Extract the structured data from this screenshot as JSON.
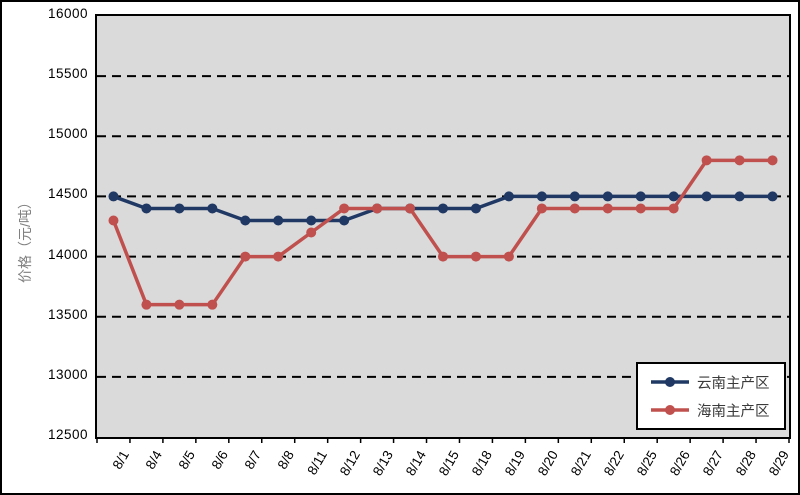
{
  "chart_data": {
    "type": "line",
    "title": "",
    "xlabel": "",
    "ylabel": "价格（元/吨）",
    "ylim": [
      12500,
      16000
    ],
    "ytick_step": 500,
    "yticks": [
      12500,
      13000,
      13500,
      14000,
      14500,
      15000,
      15500,
      16000
    ],
    "grid": "horizontal-dashed",
    "plot_background": "#DADADA",
    "legend_position": "bottom-right-inside",
    "categories": [
      "8/1",
      "8/4",
      "8/5",
      "8/6",
      "8/7",
      "8/8",
      "8/11",
      "8/12",
      "8/13",
      "8/14",
      "8/15",
      "8/18",
      "8/19",
      "8/20",
      "8/21",
      "8/22",
      "8/25",
      "8/26",
      "8/27",
      "8/28",
      "8/29"
    ],
    "series": [
      {
        "name": "云南主产区",
        "color": "#1F3864",
        "values": [
          14500,
          14400,
          14400,
          14400,
          14300,
          14300,
          14300,
          14300,
          14400,
          14400,
          14400,
          14400,
          14500,
          14500,
          14500,
          14500,
          14500,
          14500,
          14500,
          14500,
          14500
        ]
      },
      {
        "name": "海南主产区",
        "color": "#C0504D",
        "values": [
          14300,
          13600,
          13600,
          13600,
          14000,
          14000,
          14200,
          14400,
          14400,
          14400,
          14000,
          14000,
          14000,
          14400,
          14400,
          14400,
          14400,
          14400,
          14800,
          14800,
          14800
        ]
      }
    ]
  }
}
